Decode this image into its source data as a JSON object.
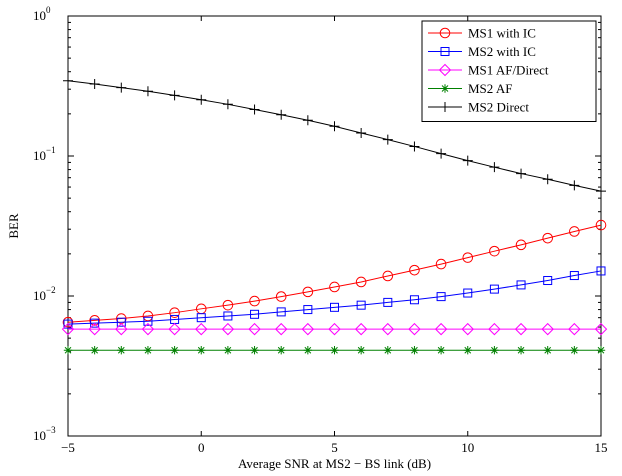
{
  "chart_data": {
    "type": "line",
    "title": "",
    "xlabel": "Average SNR at MS2 − BS link (dB)",
    "ylabel": "BER",
    "xlim": [
      -5,
      15
    ],
    "ylim": [
      0.001,
      1
    ],
    "yscale": "log",
    "grid": false,
    "legend_position": "top-right",
    "x_ticks": [
      -5,
      0,
      5,
      10,
      15
    ],
    "x_tick_labels": [
      "−5",
      "0",
      "5",
      "10",
      "15"
    ],
    "y_ticks": [
      {
        "value": 1,
        "base": "10",
        "exp": "0"
      },
      {
        "value": 0.1,
        "base": "10",
        "exp": "−1"
      },
      {
        "value": 0.01,
        "base": "10",
        "exp": "−2"
      },
      {
        "value": 0.001,
        "base": "10",
        "exp": "−3"
      }
    ],
    "x": [
      -5,
      -4,
      -3,
      -2,
      -1,
      0,
      1,
      2,
      3,
      4,
      5,
      6,
      7,
      8,
      9,
      10,
      11,
      12,
      13,
      14,
      15
    ],
    "series": [
      {
        "name": "MS1 with IC",
        "color": "#ff0000",
        "marker": "circle",
        "values": [
          0.0065,
          0.0067,
          0.0069,
          0.0072,
          0.0076,
          0.0081,
          0.0086,
          0.0092,
          0.0099,
          0.0107,
          0.0116,
          0.0126,
          0.0139,
          0.0153,
          0.0169,
          0.0188,
          0.0209,
          0.0232,
          0.0259,
          0.0289,
          0.0321
        ]
      },
      {
        "name": "MS2 with IC",
        "color": "#0000ff",
        "marker": "square",
        "values": [
          0.0063,
          0.0064,
          0.0065,
          0.0066,
          0.0068,
          0.007,
          0.0072,
          0.0074,
          0.0077,
          0.008,
          0.0083,
          0.0086,
          0.009,
          0.0094,
          0.0099,
          0.0105,
          0.0112,
          0.012,
          0.0129,
          0.014,
          0.0151
        ]
      },
      {
        "name": "MS1 AF/Direct",
        "color": "#ff00ff",
        "marker": "diamond",
        "values": [
          0.0058,
          0.0058,
          0.0058,
          0.0058,
          0.0058,
          0.0058,
          0.0058,
          0.0058,
          0.0058,
          0.0058,
          0.0058,
          0.0058,
          0.0058,
          0.0058,
          0.0058,
          0.0058,
          0.0058,
          0.0058,
          0.0058,
          0.0058,
          0.0058
        ]
      },
      {
        "name": "MS2 AF",
        "color": "#008000",
        "marker": "asterisk",
        "values": [
          0.0041,
          0.0041,
          0.0041,
          0.0041,
          0.0041,
          0.0041,
          0.0041,
          0.0041,
          0.0041,
          0.0041,
          0.0041,
          0.0041,
          0.0041,
          0.0041,
          0.0041,
          0.0041,
          0.0041,
          0.0041,
          0.0041,
          0.0041,
          0.0041
        ]
      },
      {
        "name": "MS2 Direct",
        "color": "#000000",
        "marker": "plus",
        "values": [
          0.345,
          0.327,
          0.308,
          0.29,
          0.271,
          0.252,
          0.234,
          0.215,
          0.197,
          0.18,
          0.163,
          0.146,
          0.131,
          0.117,
          0.104,
          0.0926,
          0.0832,
          0.0749,
          0.0682,
          0.0617,
          0.0561
        ]
      }
    ]
  }
}
